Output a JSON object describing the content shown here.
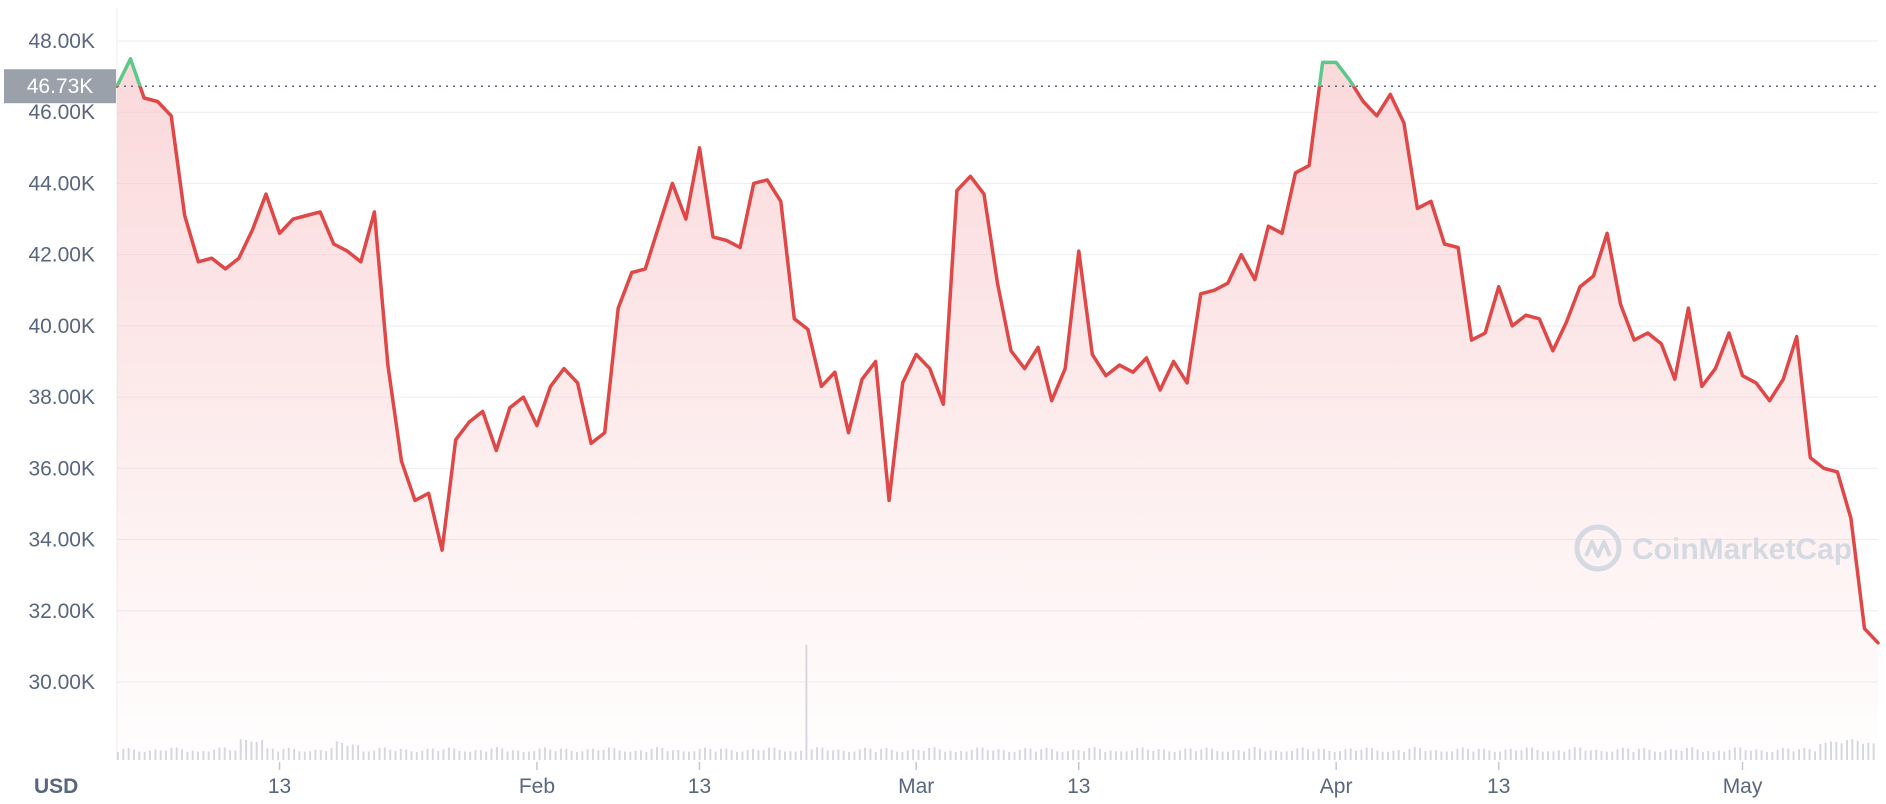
{
  "unit_label": "USD",
  "watermark": "CoinMarketCap",
  "colors": {
    "down": "#e04747",
    "up": "#5cc98a",
    "fill_top": "#f7b9bd",
    "grid": "#eceef2",
    "ref_label_bg": "#9ba1ab",
    "volume": "#d5d9e0"
  },
  "chart_data": {
    "type": "area",
    "title": "",
    "xlabel": "",
    "ylabel": "USD",
    "reference": {
      "value": 46730,
      "label": "46.73K"
    },
    "ylim": [
      28000,
      48500
    ],
    "yticks": [
      30000,
      32000,
      34000,
      36000,
      38000,
      40000,
      42000,
      44000,
      46000,
      48000
    ],
    "ytick_labels": [
      "30.00K",
      "32.00K",
      "34.00K",
      "36.00K",
      "38.00K",
      "40.00K",
      "42.00K",
      "44.00K",
      "46.00K",
      "48.00K"
    ],
    "x_range": [
      "2022-01-01",
      "2022-05-11"
    ],
    "xticks": [
      {
        "date": "2022-01-13",
        "label": "13"
      },
      {
        "date": "2022-02-01",
        "label": "Feb"
      },
      {
        "date": "2022-02-13",
        "label": "13"
      },
      {
        "date": "2022-03-01",
        "label": "Mar"
      },
      {
        "date": "2022-03-13",
        "label": "13"
      },
      {
        "date": "2022-04-01",
        "label": "Apr"
      },
      {
        "date": "2022-04-13",
        "label": "13"
      },
      {
        "date": "2022-05-01",
        "label": "May"
      }
    ],
    "grid": true,
    "series": [
      {
        "values": [
          [
            "2022-01-01",
            46730
          ],
          [
            "2022-01-02",
            47500
          ],
          [
            "2022-01-03",
            46400
          ],
          [
            "2022-01-04",
            46300
          ],
          [
            "2022-01-05",
            45900
          ],
          [
            "2022-01-06",
            43100
          ],
          [
            "2022-01-07",
            41800
          ],
          [
            "2022-01-08",
            41900
          ],
          [
            "2022-01-09",
            41600
          ],
          [
            "2022-01-10",
            41900
          ],
          [
            "2022-01-11",
            42700
          ],
          [
            "2022-01-12",
            43700
          ],
          [
            "2022-01-13",
            42600
          ],
          [
            "2022-01-14",
            43000
          ],
          [
            "2022-01-15",
            43100
          ],
          [
            "2022-01-16",
            43200
          ],
          [
            "2022-01-17",
            42300
          ],
          [
            "2022-01-18",
            42100
          ],
          [
            "2022-01-19",
            41800
          ],
          [
            "2022-01-20",
            43200
          ],
          [
            "2022-01-21",
            38900
          ],
          [
            "2022-01-22",
            36200
          ],
          [
            "2022-01-23",
            35100
          ],
          [
            "2022-01-24",
            35300
          ],
          [
            "2022-01-25",
            33700
          ],
          [
            "2022-01-26",
            36800
          ],
          [
            "2022-01-27",
            37300
          ],
          [
            "2022-01-28",
            37600
          ],
          [
            "2022-01-29",
            36500
          ],
          [
            "2022-01-30",
            37700
          ],
          [
            "2022-01-31",
            38000
          ],
          [
            "2022-02-01",
            37200
          ],
          [
            "2022-02-02",
            38300
          ],
          [
            "2022-02-03",
            38800
          ],
          [
            "2022-02-04",
            38400
          ],
          [
            "2022-02-05",
            36700
          ],
          [
            "2022-02-06",
            37000
          ],
          [
            "2022-02-07",
            40500
          ],
          [
            "2022-02-08",
            41500
          ],
          [
            "2022-02-09",
            41600
          ],
          [
            "2022-02-10",
            42800
          ],
          [
            "2022-02-11",
            44000
          ],
          [
            "2022-02-12",
            43000
          ],
          [
            "2022-02-13",
            45000
          ],
          [
            "2022-02-14",
            42500
          ],
          [
            "2022-02-15",
            42400
          ],
          [
            "2022-02-16",
            42200
          ],
          [
            "2022-02-17",
            44000
          ],
          [
            "2022-02-18",
            44100
          ],
          [
            "2022-02-19",
            43500
          ],
          [
            "2022-02-20",
            40200
          ],
          [
            "2022-02-21",
            39900
          ],
          [
            "2022-02-22",
            38300
          ],
          [
            "2022-02-23",
            38700
          ],
          [
            "2022-02-24",
            37000
          ],
          [
            "2022-02-25",
            38500
          ],
          [
            "2022-02-26",
            39000
          ],
          [
            "2022-02-27",
            35100
          ],
          [
            "2022-02-28",
            38400
          ],
          [
            "2022-03-01",
            39200
          ],
          [
            "2022-03-02",
            38800
          ],
          [
            "2022-03-03",
            37800
          ],
          [
            "2022-03-04",
            43800
          ],
          [
            "2022-03-05",
            44200
          ],
          [
            "2022-03-06",
            43700
          ],
          [
            "2022-03-07",
            41200
          ],
          [
            "2022-03-08",
            39300
          ],
          [
            "2022-03-09",
            38800
          ],
          [
            "2022-03-10",
            39400
          ],
          [
            "2022-03-11",
            37900
          ],
          [
            "2022-03-12",
            38800
          ],
          [
            "2022-03-13",
            42100
          ],
          [
            "2022-03-14",
            39200
          ],
          [
            "2022-03-15",
            38600
          ],
          [
            "2022-03-16",
            38900
          ],
          [
            "2022-03-17",
            38700
          ],
          [
            "2022-03-18",
            39100
          ],
          [
            "2022-03-19",
            38200
          ],
          [
            "2022-03-20",
            39000
          ],
          [
            "2022-03-21",
            38400
          ],
          [
            "2022-03-22",
            40900
          ],
          [
            "2022-03-23",
            41000
          ],
          [
            "2022-03-24",
            41200
          ],
          [
            "2022-03-25",
            42000
          ],
          [
            "2022-03-26",
            41300
          ],
          [
            "2022-03-27",
            42800
          ],
          [
            "2022-03-28",
            42600
          ],
          [
            "2022-03-29",
            44300
          ],
          [
            "2022-03-30",
            44500
          ],
          [
            "2022-03-31",
            47400
          ],
          [
            "2022-04-01",
            47400
          ],
          [
            "2022-04-02",
            46900
          ],
          [
            "2022-04-03",
            46300
          ],
          [
            "2022-04-04",
            45900
          ],
          [
            "2022-04-05",
            46500
          ],
          [
            "2022-04-06",
            45700
          ],
          [
            "2022-04-07",
            43300
          ],
          [
            "2022-04-08",
            43500
          ],
          [
            "2022-04-09",
            42300
          ],
          [
            "2022-04-10",
            42200
          ],
          [
            "2022-04-11",
            39600
          ],
          [
            "2022-04-12",
            39800
          ],
          [
            "2022-04-13",
            41100
          ],
          [
            "2022-04-14",
            40000
          ],
          [
            "2022-04-15",
            40300
          ],
          [
            "2022-04-16",
            40200
          ],
          [
            "2022-04-17",
            39300
          ],
          [
            "2022-04-18",
            40100
          ],
          [
            "2022-04-19",
            41100
          ],
          [
            "2022-04-20",
            41400
          ],
          [
            "2022-04-21",
            42600
          ],
          [
            "2022-04-22",
            40600
          ],
          [
            "2022-04-23",
            39600
          ],
          [
            "2022-04-24",
            39800
          ],
          [
            "2022-04-25",
            39500
          ],
          [
            "2022-04-26",
            38500
          ],
          [
            "2022-04-27",
            40500
          ],
          [
            "2022-04-28",
            38300
          ],
          [
            "2022-04-29",
            38800
          ],
          [
            "2022-04-30",
            39800
          ],
          [
            "2022-05-01",
            38600
          ],
          [
            "2022-05-02",
            38400
          ],
          [
            "2022-05-03",
            37900
          ],
          [
            "2022-05-04",
            38500
          ],
          [
            "2022-05-05",
            39700
          ],
          [
            "2022-05-06",
            36300
          ],
          [
            "2022-05-07",
            36000
          ],
          [
            "2022-05-08",
            35900
          ],
          [
            "2022-05-09",
            34600
          ],
          [
            "2022-05-10",
            31500
          ],
          [
            "2022-05-11",
            31100
          ]
        ]
      }
    ]
  }
}
